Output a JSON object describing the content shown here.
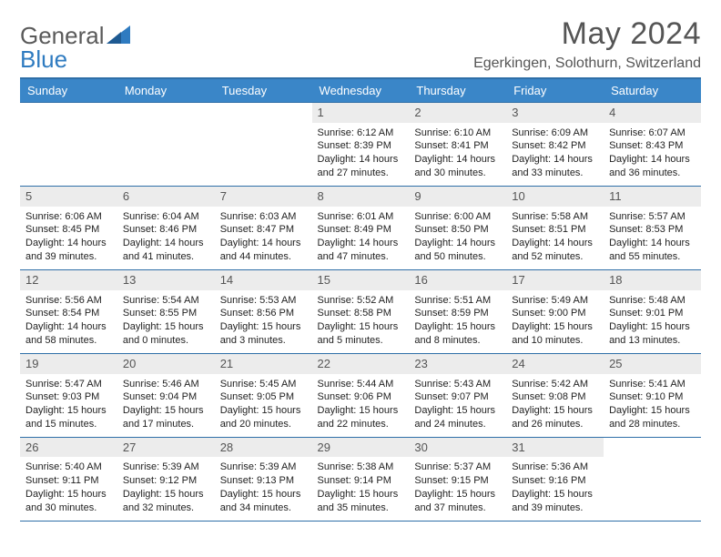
{
  "brand": {
    "general": "General",
    "blue": "Blue"
  },
  "header": {
    "title": "May 2024",
    "location": "Egerkingen, Solothurn, Switzerland"
  },
  "colors": {
    "header_bg": "#3a86c8",
    "border": "#2f6fa8",
    "daynum_bg": "#ececec",
    "text_muted": "#555555",
    "logo_blue": "#2f7bc0"
  },
  "calendar": {
    "type": "table",
    "columns": [
      "Sunday",
      "Monday",
      "Tuesday",
      "Wednesday",
      "Thursday",
      "Friday",
      "Saturday"
    ],
    "first_weekday_index": 3,
    "days": [
      {
        "n": "1",
        "sunrise": "Sunrise: 6:12 AM",
        "sunset": "Sunset: 8:39 PM",
        "daylight1": "Daylight: 14 hours",
        "daylight2": "and 27 minutes."
      },
      {
        "n": "2",
        "sunrise": "Sunrise: 6:10 AM",
        "sunset": "Sunset: 8:41 PM",
        "daylight1": "Daylight: 14 hours",
        "daylight2": "and 30 minutes."
      },
      {
        "n": "3",
        "sunrise": "Sunrise: 6:09 AM",
        "sunset": "Sunset: 8:42 PM",
        "daylight1": "Daylight: 14 hours",
        "daylight2": "and 33 minutes."
      },
      {
        "n": "4",
        "sunrise": "Sunrise: 6:07 AM",
        "sunset": "Sunset: 8:43 PM",
        "daylight1": "Daylight: 14 hours",
        "daylight2": "and 36 minutes."
      },
      {
        "n": "5",
        "sunrise": "Sunrise: 6:06 AM",
        "sunset": "Sunset: 8:45 PM",
        "daylight1": "Daylight: 14 hours",
        "daylight2": "and 39 minutes."
      },
      {
        "n": "6",
        "sunrise": "Sunrise: 6:04 AM",
        "sunset": "Sunset: 8:46 PM",
        "daylight1": "Daylight: 14 hours",
        "daylight2": "and 41 minutes."
      },
      {
        "n": "7",
        "sunrise": "Sunrise: 6:03 AM",
        "sunset": "Sunset: 8:47 PM",
        "daylight1": "Daylight: 14 hours",
        "daylight2": "and 44 minutes."
      },
      {
        "n": "8",
        "sunrise": "Sunrise: 6:01 AM",
        "sunset": "Sunset: 8:49 PM",
        "daylight1": "Daylight: 14 hours",
        "daylight2": "and 47 minutes."
      },
      {
        "n": "9",
        "sunrise": "Sunrise: 6:00 AM",
        "sunset": "Sunset: 8:50 PM",
        "daylight1": "Daylight: 14 hours",
        "daylight2": "and 50 minutes."
      },
      {
        "n": "10",
        "sunrise": "Sunrise: 5:58 AM",
        "sunset": "Sunset: 8:51 PM",
        "daylight1": "Daylight: 14 hours",
        "daylight2": "and 52 minutes."
      },
      {
        "n": "11",
        "sunrise": "Sunrise: 5:57 AM",
        "sunset": "Sunset: 8:53 PM",
        "daylight1": "Daylight: 14 hours",
        "daylight2": "and 55 minutes."
      },
      {
        "n": "12",
        "sunrise": "Sunrise: 5:56 AM",
        "sunset": "Sunset: 8:54 PM",
        "daylight1": "Daylight: 14 hours",
        "daylight2": "and 58 minutes."
      },
      {
        "n": "13",
        "sunrise": "Sunrise: 5:54 AM",
        "sunset": "Sunset: 8:55 PM",
        "daylight1": "Daylight: 15 hours",
        "daylight2": "and 0 minutes."
      },
      {
        "n": "14",
        "sunrise": "Sunrise: 5:53 AM",
        "sunset": "Sunset: 8:56 PM",
        "daylight1": "Daylight: 15 hours",
        "daylight2": "and 3 minutes."
      },
      {
        "n": "15",
        "sunrise": "Sunrise: 5:52 AM",
        "sunset": "Sunset: 8:58 PM",
        "daylight1": "Daylight: 15 hours",
        "daylight2": "and 5 minutes."
      },
      {
        "n": "16",
        "sunrise": "Sunrise: 5:51 AM",
        "sunset": "Sunset: 8:59 PM",
        "daylight1": "Daylight: 15 hours",
        "daylight2": "and 8 minutes."
      },
      {
        "n": "17",
        "sunrise": "Sunrise: 5:49 AM",
        "sunset": "Sunset: 9:00 PM",
        "daylight1": "Daylight: 15 hours",
        "daylight2": "and 10 minutes."
      },
      {
        "n": "18",
        "sunrise": "Sunrise: 5:48 AM",
        "sunset": "Sunset: 9:01 PM",
        "daylight1": "Daylight: 15 hours",
        "daylight2": "and 13 minutes."
      },
      {
        "n": "19",
        "sunrise": "Sunrise: 5:47 AM",
        "sunset": "Sunset: 9:03 PM",
        "daylight1": "Daylight: 15 hours",
        "daylight2": "and 15 minutes."
      },
      {
        "n": "20",
        "sunrise": "Sunrise: 5:46 AM",
        "sunset": "Sunset: 9:04 PM",
        "daylight1": "Daylight: 15 hours",
        "daylight2": "and 17 minutes."
      },
      {
        "n": "21",
        "sunrise": "Sunrise: 5:45 AM",
        "sunset": "Sunset: 9:05 PM",
        "daylight1": "Daylight: 15 hours",
        "daylight2": "and 20 minutes."
      },
      {
        "n": "22",
        "sunrise": "Sunrise: 5:44 AM",
        "sunset": "Sunset: 9:06 PM",
        "daylight1": "Daylight: 15 hours",
        "daylight2": "and 22 minutes."
      },
      {
        "n": "23",
        "sunrise": "Sunrise: 5:43 AM",
        "sunset": "Sunset: 9:07 PM",
        "daylight1": "Daylight: 15 hours",
        "daylight2": "and 24 minutes."
      },
      {
        "n": "24",
        "sunrise": "Sunrise: 5:42 AM",
        "sunset": "Sunset: 9:08 PM",
        "daylight1": "Daylight: 15 hours",
        "daylight2": "and 26 minutes."
      },
      {
        "n": "25",
        "sunrise": "Sunrise: 5:41 AM",
        "sunset": "Sunset: 9:10 PM",
        "daylight1": "Daylight: 15 hours",
        "daylight2": "and 28 minutes."
      },
      {
        "n": "26",
        "sunrise": "Sunrise: 5:40 AM",
        "sunset": "Sunset: 9:11 PM",
        "daylight1": "Daylight: 15 hours",
        "daylight2": "and 30 minutes."
      },
      {
        "n": "27",
        "sunrise": "Sunrise: 5:39 AM",
        "sunset": "Sunset: 9:12 PM",
        "daylight1": "Daylight: 15 hours",
        "daylight2": "and 32 minutes."
      },
      {
        "n": "28",
        "sunrise": "Sunrise: 5:39 AM",
        "sunset": "Sunset: 9:13 PM",
        "daylight1": "Daylight: 15 hours",
        "daylight2": "and 34 minutes."
      },
      {
        "n": "29",
        "sunrise": "Sunrise: 5:38 AM",
        "sunset": "Sunset: 9:14 PM",
        "daylight1": "Daylight: 15 hours",
        "daylight2": "and 35 minutes."
      },
      {
        "n": "30",
        "sunrise": "Sunrise: 5:37 AM",
        "sunset": "Sunset: 9:15 PM",
        "daylight1": "Daylight: 15 hours",
        "daylight2": "and 37 minutes."
      },
      {
        "n": "31",
        "sunrise": "Sunrise: 5:36 AM",
        "sunset": "Sunset: 9:16 PM",
        "daylight1": "Daylight: 15 hours",
        "daylight2": "and 39 minutes."
      }
    ]
  }
}
